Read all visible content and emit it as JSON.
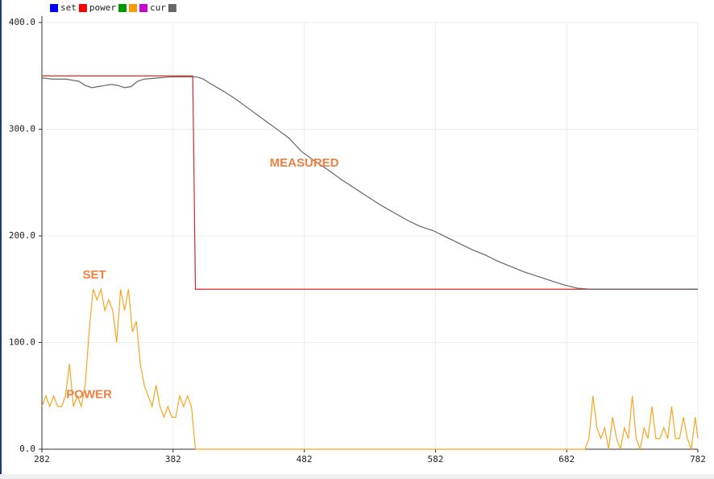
{
  "chart_data": {
    "type": "line",
    "legend": [
      {
        "swatch": "#0000ff"
      },
      {
        "text": "set"
      },
      {
        "swatch": "#ff0000"
      },
      {
        "text": "power"
      },
      {
        "swatch": "#009900"
      },
      {
        "swatch": "#ff9900"
      },
      {
        "swatch": "#cc00cc"
      },
      {
        "text": "cur"
      },
      {
        "swatch": "#666666"
      }
    ],
    "annotations": [
      {
        "text": "MEASURED",
        "x": 482,
        "y": 268
      },
      {
        "text": "SET",
        "x": 322,
        "y": 163
      },
      {
        "text": "POWER",
        "x": 318,
        "y": 51
      }
    ],
    "xlim": [
      282,
      782
    ],
    "ylim": [
      0,
      400
    ],
    "xticks": [
      282,
      382,
      482,
      582,
      682,
      782
    ],
    "yticks": [
      {
        "value": 0,
        "label": "0.0"
      },
      {
        "value": 100,
        "label": "100.0"
      },
      {
        "value": 200,
        "label": "200.0"
      },
      {
        "value": 300,
        "label": "300.0"
      },
      {
        "value": 400,
        "label": "400.0"
      }
    ],
    "grid": true,
    "series": [
      {
        "color": "#d62728",
        "x": [
          282,
          397,
          399,
          782
        ],
        "values": [
          350,
          350,
          150,
          150
        ]
      },
      {
        "color": "#f5a623",
        "x": [
          282,
          285,
          288,
          291,
          294,
          297,
          300,
          303,
          306,
          309,
          312,
          315,
          318,
          321,
          324,
          327,
          330,
          333,
          336,
          339,
          342,
          345,
          348,
          351,
          354,
          357,
          360,
          363,
          366,
          369,
          372,
          375,
          378,
          381,
          384,
          387,
          390,
          393,
          396,
          399,
          696,
          699,
          702,
          705,
          708,
          711,
          714,
          717,
          720,
          723,
          726,
          729,
          732,
          735,
          738,
          741,
          744,
          747,
          750,
          753,
          756,
          759,
          762,
          765,
          768,
          771,
          774,
          777,
          780,
          782
        ],
        "values": [
          40,
          50,
          40,
          50,
          40,
          40,
          50,
          80,
          40,
          50,
          40,
          60,
          110,
          150,
          140,
          150,
          130,
          140,
          130,
          100,
          150,
          130,
          150,
          110,
          120,
          80,
          60,
          50,
          40,
          60,
          40,
          30,
          40,
          30,
          30,
          50,
          40,
          50,
          40,
          0,
          0,
          10,
          50,
          20,
          10,
          20,
          0,
          30,
          10,
          0,
          20,
          10,
          50,
          10,
          0,
          20,
          10,
          40,
          10,
          10,
          20,
          10,
          40,
          10,
          10,
          30,
          10,
          0,
          30,
          10
        ]
      },
      {
        "color": "#666666",
        "x": [
          282,
          290,
          300,
          310,
          315,
          320,
          325,
          330,
          335,
          340,
          345,
          350,
          355,
          360,
          370,
          380,
          390,
          400,
          405,
          410,
          420,
          430,
          440,
          450,
          460,
          470,
          480,
          490,
          500,
          510,
          520,
          530,
          540,
          550,
          560,
          570,
          580,
          590,
          600,
          610,
          620,
          630,
          640,
          650,
          660,
          670,
          680,
          690,
          700,
          720,
          740,
          760,
          782
        ],
        "values": [
          348,
          347,
          347,
          345,
          341,
          339,
          340,
          341,
          342,
          341,
          339,
          340,
          345,
          347,
          348,
          349,
          349,
          349,
          347,
          343,
          336,
          328,
          319,
          310,
          301,
          292,
          279,
          270,
          262,
          253,
          245,
          237,
          229,
          222,
          215,
          209,
          205,
          199,
          193,
          187,
          182,
          176,
          171,
          166,
          162,
          158,
          154,
          151,
          150,
          150,
          150,
          150,
          150
        ]
      }
    ]
  }
}
